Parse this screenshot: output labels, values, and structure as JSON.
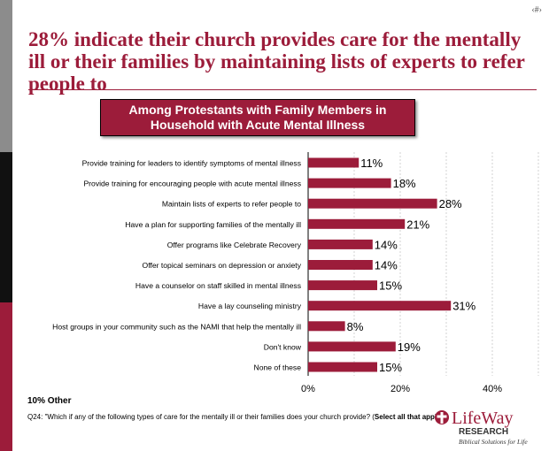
{
  "slide_number": "‹#›",
  "title": "28% indicate their church provides care for the mentally ill or their families by maintaining lists of experts to refer people to",
  "colors": {
    "accent": "#9c1c3a",
    "bar": "#9c1c3a",
    "side_gray": "#8c8c8c",
    "side_black": "#111111"
  },
  "chart_data": {
    "type": "bar",
    "orientation": "horizontal",
    "title": "Among Protestants with Family Members in Household with Acute Mental Illness",
    "categories": [
      "Provide training for leaders to identify symptoms of mental illness",
      "Provide training for encouraging people with acute mental illness",
      "Maintain lists of experts to refer people to",
      "Have a plan for supporting families of the mentally ill",
      "Offer programs like Celebrate Recovery",
      "Offer topical seminars on depression or anxiety",
      "Have a counselor on staff skilled in mental illness",
      "Have a lay counseling ministry",
      "Host groups in your community such as the NAMI that help the mentally ill",
      "Don't know",
      "None of these"
    ],
    "values": [
      11,
      18,
      28,
      21,
      14,
      14,
      15,
      31,
      8,
      19,
      15
    ],
    "value_labels": [
      "11%",
      "18%",
      "28%",
      "21%",
      "14%",
      "14%",
      "15%",
      "31%",
      "8%",
      "19%",
      "15%"
    ],
    "xlim": [
      0,
      50
    ],
    "x_ticks": [
      0,
      20,
      40
    ],
    "x_tick_labels": [
      "0%",
      "20%",
      "40%"
    ],
    "grid": true,
    "legend": "none"
  },
  "footer": {
    "other": "10% Other",
    "question": "Q24: \"Which if any of the following types of care for the mentally ill or their families does your church provide? (",
    "question_bold": "Select all that apply",
    "question_end": ")\""
  },
  "logo": {
    "name": "LifeWay",
    "sub": "RESEARCH",
    "tagline": "Biblical Solutions for Life"
  }
}
